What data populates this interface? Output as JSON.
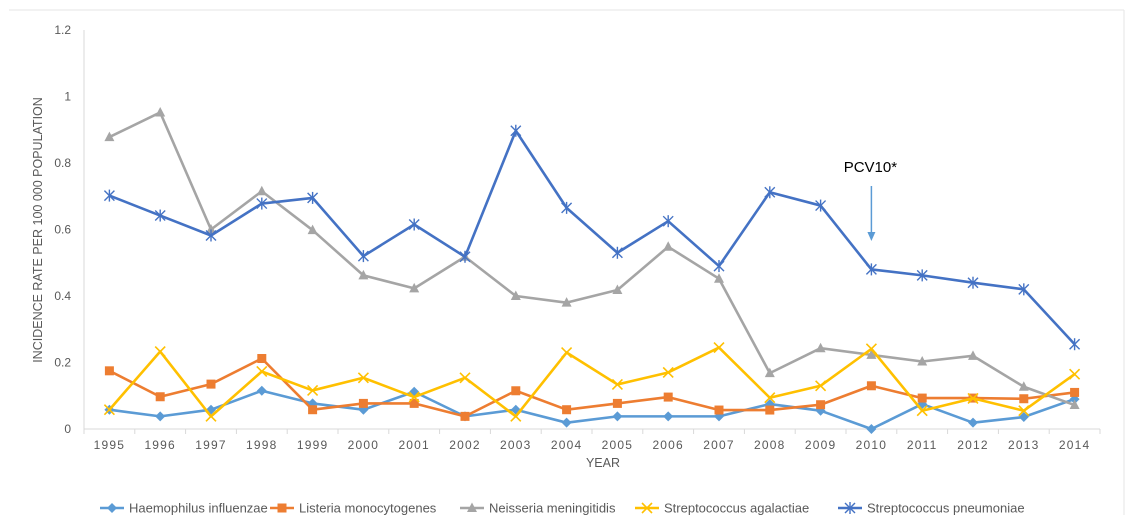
{
  "chart_data": {
    "type": "line",
    "title": "",
    "xlabel": "YEAR",
    "ylabel": "INCIDENCE RATE PER 100 000 POPULATION",
    "x": [
      "1995",
      "1996",
      "1997",
      "1998",
      "1999",
      "2000",
      "2001",
      "2002",
      "2003",
      "2004",
      "2005",
      "2006",
      "2007",
      "2008",
      "2009",
      "2010",
      "2011",
      "2012",
      "2013",
      "2014"
    ],
    "ylim": [
      0,
      1.2
    ],
    "yticks": [
      "0",
      "0.2",
      "0.4",
      "0.6",
      "0.8",
      "1",
      "1.2"
    ],
    "grid": false,
    "legend_position": "bottom",
    "annotation": {
      "text": "PCV10*",
      "x": "2010",
      "arrow_color": "#5B9BD5"
    },
    "series": [
      {
        "name": "Haemophilus influenzae",
        "color": "#5B9BD5",
        "marker": "diamond",
        "values": [
          0.058,
          0.038,
          0.058,
          0.115,
          0.077,
          0.058,
          0.112,
          0.038,
          0.058,
          0.019,
          0.038,
          0.038,
          0.038,
          0.075,
          0.055,
          0.0,
          0.075,
          0.019,
          0.036,
          0.09
        ]
      },
      {
        "name": "Listeria monocytogenes",
        "color": "#ED7D31",
        "marker": "square",
        "values": [
          0.175,
          0.097,
          0.135,
          0.212,
          0.058,
          0.077,
          0.077,
          0.038,
          0.115,
          0.058,
          0.077,
          0.096,
          0.057,
          0.057,
          0.073,
          0.13,
          0.093,
          0.093,
          0.091,
          0.11
        ]
      },
      {
        "name": "Neisseria meningitidis",
        "color": "#A5A5A5",
        "marker": "triangle",
        "values": [
          0.878,
          0.952,
          0.6,
          0.715,
          0.598,
          0.462,
          0.423,
          0.518,
          0.4,
          0.38,
          0.418,
          0.548,
          0.452,
          0.168,
          0.243,
          0.223,
          0.203,
          0.22,
          0.127,
          0.072
        ]
      },
      {
        "name": "Streptococcus agalactiae",
        "color": "#FFC000",
        "marker": "x",
        "values": [
          0.058,
          0.233,
          0.038,
          0.173,
          0.116,
          0.154,
          0.096,
          0.154,
          0.038,
          0.23,
          0.134,
          0.17,
          0.245,
          0.094,
          0.13,
          0.241,
          0.055,
          0.092,
          0.055,
          0.165
        ]
      },
      {
        "name": "Streptococcus pneumoniae",
        "color": "#4472C4",
        "marker": "star",
        "values": [
          0.702,
          0.642,
          0.582,
          0.678,
          0.695,
          0.52,
          0.615,
          0.518,
          0.897,
          0.665,
          0.53,
          0.625,
          0.49,
          0.712,
          0.672,
          0.48,
          0.462,
          0.44,
          0.42,
          0.255
        ]
      }
    ]
  }
}
